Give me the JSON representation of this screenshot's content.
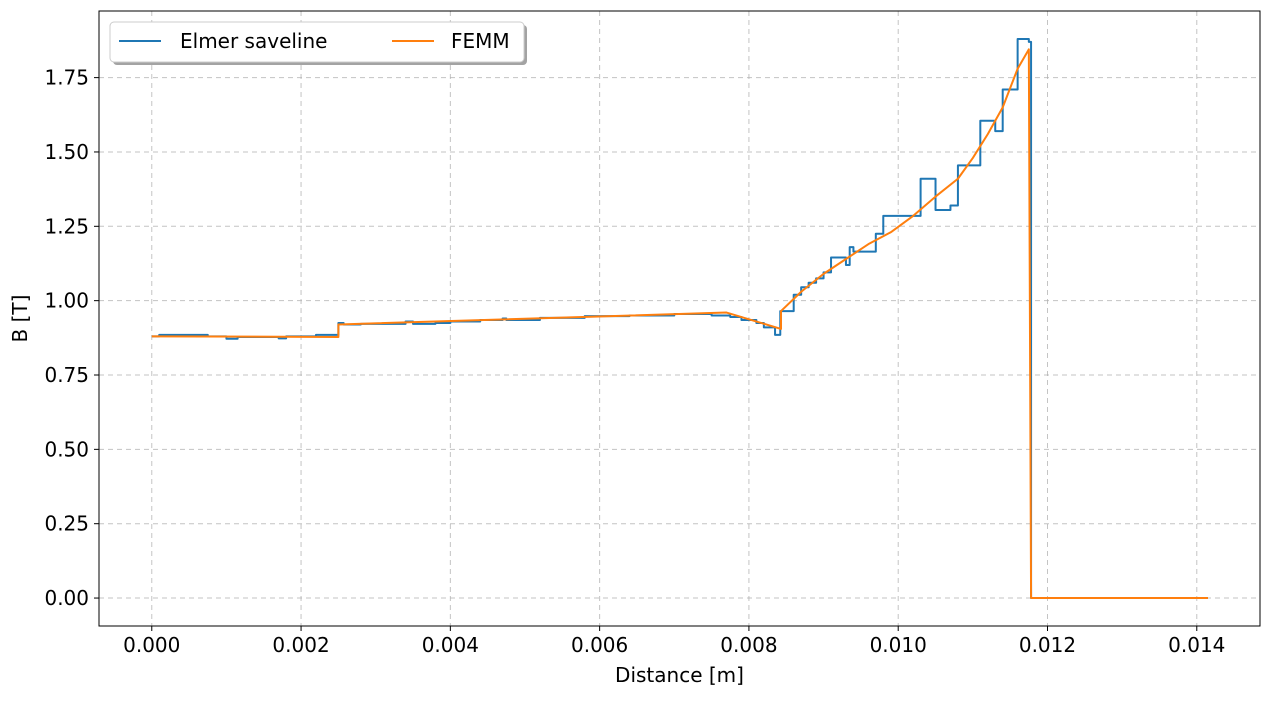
{
  "chart_data": {
    "type": "line",
    "title": "",
    "xlabel": "Distance [m]",
    "ylabel": "B [T]",
    "xlim": [
      -0.000707,
      0.014847
    ],
    "ylim": [
      -0.094,
      1.974
    ],
    "xticks": [
      0.0,
      0.002,
      0.004,
      0.006,
      0.008,
      0.01,
      0.012,
      0.014
    ],
    "xtick_labels": [
      "0.000",
      "0.002",
      "0.004",
      "0.006",
      "0.008",
      "0.010",
      "0.012",
      "0.014"
    ],
    "yticks": [
      0.0,
      0.25,
      0.5,
      0.75,
      1.0,
      1.25,
      1.5,
      1.75
    ],
    "ytick_labels": [
      "0.00",
      "0.25",
      "0.50",
      "0.75",
      "1.00",
      "1.25",
      "1.50",
      "1.75"
    ],
    "grid": true,
    "legend_placement": "top-left",
    "legend_columns": 2,
    "series": [
      {
        "name": "Elmer saveline",
        "color": "#1f77b4",
        "x": [
          0.0,
          0.0001,
          0.0001,
          0.00075,
          0.00075,
          0.001,
          0.001,
          0.00115,
          0.00115,
          0.0017,
          0.0017,
          0.0018,
          0.0018,
          0.0022,
          0.0022,
          0.0025,
          0.0025,
          0.00257,
          0.00257,
          0.00262,
          0.00262,
          0.0028,
          0.0028,
          0.0034,
          0.0034,
          0.0035,
          0.0035,
          0.0036,
          0.0036,
          0.0038,
          0.0038,
          0.004,
          0.004,
          0.0044,
          0.0044,
          0.0047,
          0.0047,
          0.00475,
          0.00475,
          0.0052,
          0.0052,
          0.0058,
          0.0058,
          0.0064,
          0.0064,
          0.007,
          0.007,
          0.0075,
          0.0075,
          0.00775,
          0.00775,
          0.0079,
          0.0079,
          0.0081,
          0.0081,
          0.0082,
          0.0082,
          0.00835,
          0.00835,
          0.00842,
          0.00842,
          0.0086,
          0.0086,
          0.0087,
          0.0087,
          0.0088,
          0.0088,
          0.0089,
          0.0089,
          0.009,
          0.009,
          0.0091,
          0.0091,
          0.0093,
          0.0093,
          0.00935,
          0.00935,
          0.0094,
          0.0094,
          0.00945,
          0.00945,
          0.0097,
          0.0097,
          0.0098,
          0.0098,
          0.0103,
          0.0103,
          0.0105,
          0.0105,
          0.0107,
          0.0107,
          0.0108,
          0.0108,
          0.0111,
          0.0111,
          0.0113,
          0.0113,
          0.0114,
          0.0114,
          0.0116,
          0.0116,
          0.01175,
          0.01175,
          0.01178,
          0.01178,
          0.01415
        ],
        "y": [
          0.88,
          0.88,
          0.885,
          0.885,
          0.88,
          0.88,
          0.872,
          0.872,
          0.878,
          0.878,
          0.873,
          0.873,
          0.88,
          0.88,
          0.885,
          0.885,
          0.925,
          0.925,
          0.92,
          0.92,
          0.92,
          0.92,
          0.922,
          0.922,
          0.93,
          0.93,
          0.922,
          0.922,
          0.922,
          0.922,
          0.925,
          0.925,
          0.93,
          0.93,
          0.935,
          0.935,
          0.94,
          0.94,
          0.935,
          0.935,
          0.942,
          0.942,
          0.948,
          0.948,
          0.95,
          0.95,
          0.955,
          0.955,
          0.95,
          0.95,
          0.945,
          0.945,
          0.935,
          0.935,
          0.925,
          0.925,
          0.91,
          0.91,
          0.885,
          0.885,
          0.965,
          0.965,
          1.02,
          1.02,
          1.045,
          1.045,
          1.06,
          1.06,
          1.075,
          1.075,
          1.095,
          1.095,
          1.145,
          1.145,
          1.12,
          1.12,
          1.18,
          1.18,
          1.165,
          1.165,
          1.165,
          1.165,
          1.225,
          1.225,
          1.285,
          1.285,
          1.41,
          1.41,
          1.305,
          1.305,
          1.32,
          1.32,
          1.455,
          1.455,
          1.605,
          1.605,
          1.57,
          1.57,
          1.71,
          1.71,
          1.88,
          1.88,
          1.87,
          1.87,
          0.0,
          0.0
        ]
      },
      {
        "name": "FEMM",
        "color": "#ff7f0e",
        "x": [
          0.0,
          0.0025,
          0.0025,
          0.0077,
          0.00843,
          0.00843,
          0.0087,
          0.009,
          0.0093,
          0.0096,
          0.0099,
          0.0102,
          0.0105,
          0.0108,
          0.011,
          0.0112,
          0.0114,
          0.0116,
          0.01175,
          0.01178,
          0.01415
        ],
        "y": [
          0.88,
          0.878,
          0.92,
          0.96,
          0.905,
          0.965,
          1.03,
          1.09,
          1.14,
          1.19,
          1.23,
          1.285,
          1.35,
          1.41,
          1.48,
          1.56,
          1.65,
          1.78,
          1.845,
          0.0,
          0.0
        ]
      }
    ]
  }
}
